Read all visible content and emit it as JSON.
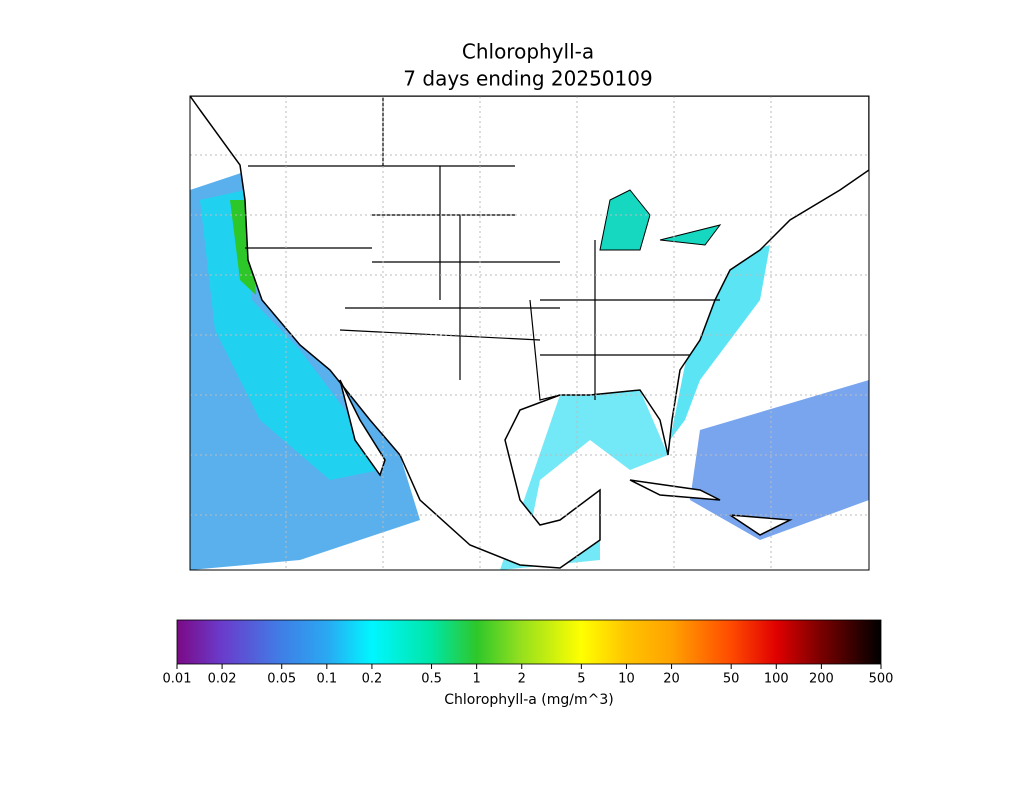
{
  "map": {
    "title": "Chlorophyll-a",
    "subtitle": "7 days ending 20250109"
  },
  "colorbar": {
    "label": "Chlorophyll-a (mg/m^3)",
    "scale": "log",
    "lim": [
      0.01,
      500
    ],
    "ticks": [
      0.01,
      0.02,
      0.05,
      0.1,
      0.2,
      0.5,
      1,
      2,
      5,
      10,
      20,
      50,
      100,
      200,
      500
    ],
    "colors": [
      "#7b0a86",
      "#6a3ccc",
      "#3f7fe6",
      "#2aa8f2",
      "#00f6ff",
      "#00e6a6",
      "#2ec72a",
      "#96e01e",
      "#ffff00",
      "#ffc400",
      "#ffa200",
      "#ff4a00",
      "#e00000",
      "#780000",
      "#000000"
    ]
  }
}
